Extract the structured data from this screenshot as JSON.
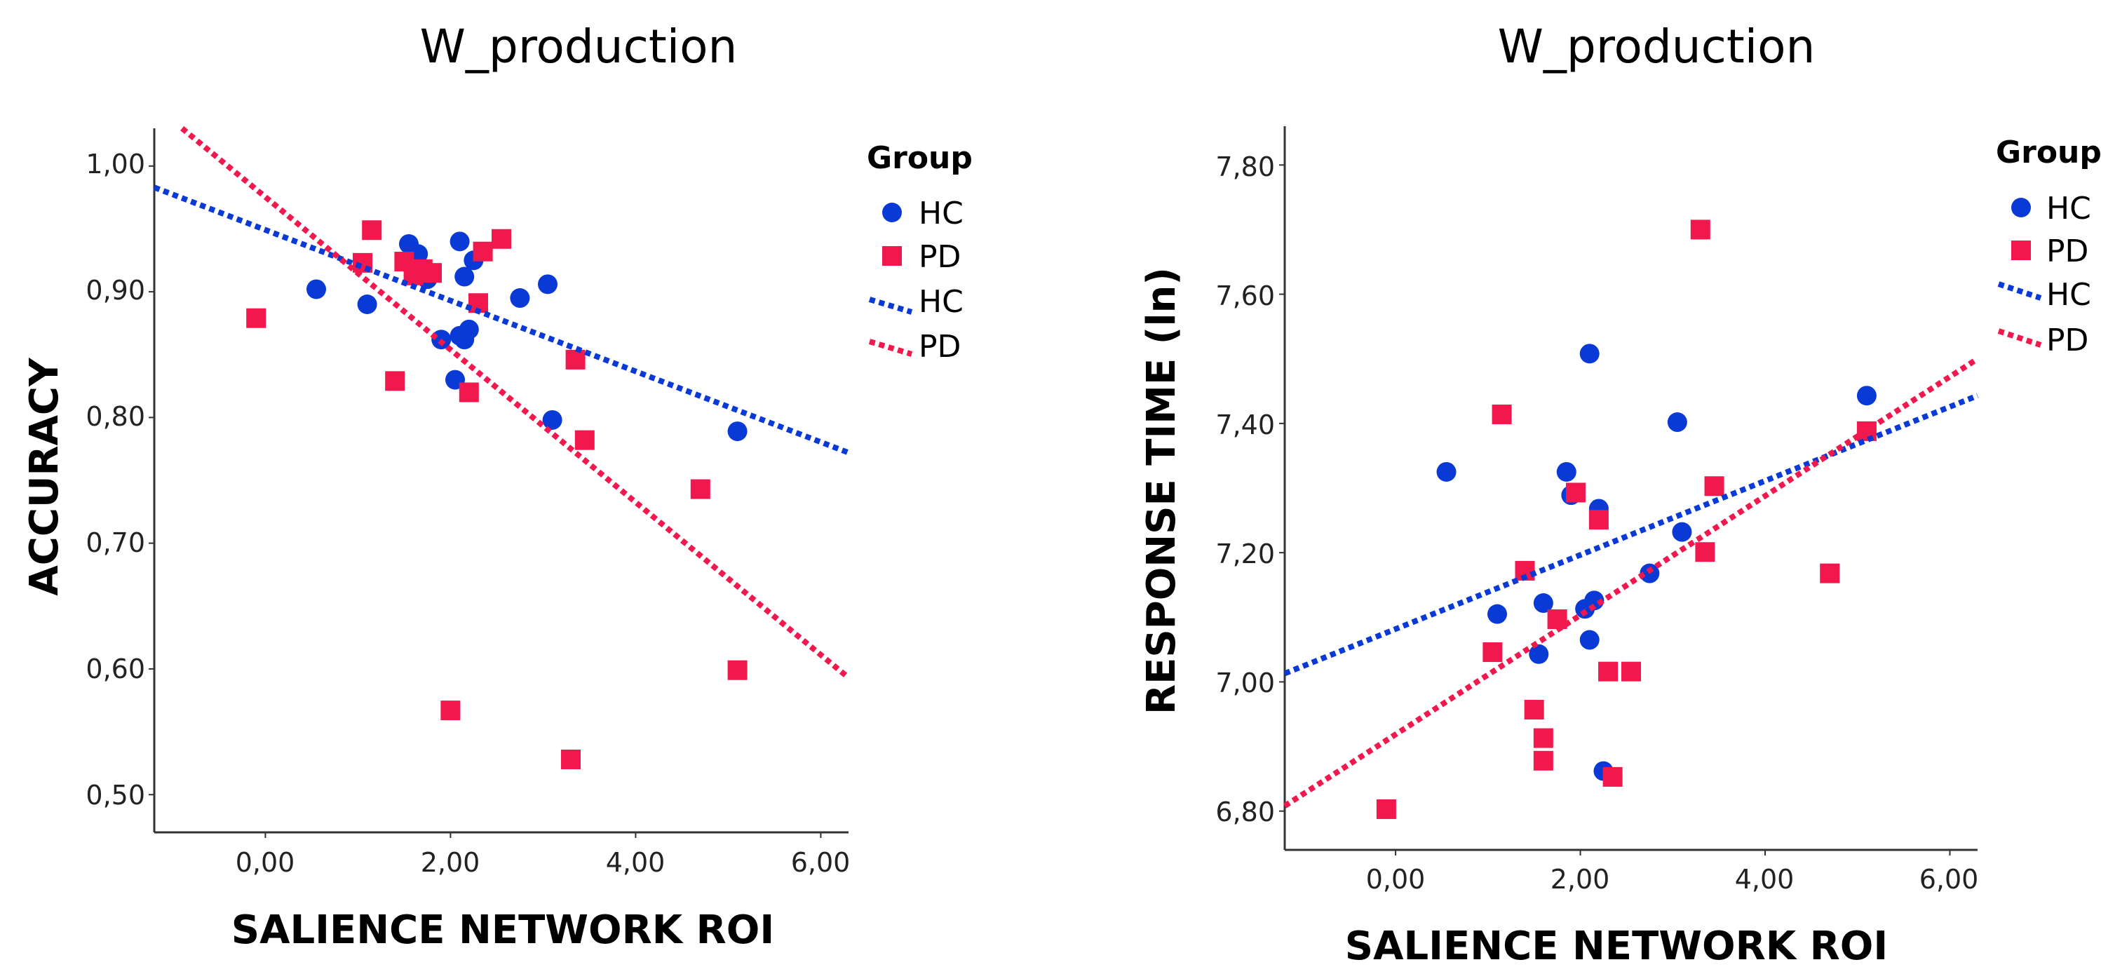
{
  "chart_data": [
    {
      "type": "scatter",
      "title": "W_production",
      "xlabel": "SALIENCE NETWORK ROI",
      "ylabel": "ACCURACY",
      "xlim": [
        -1.2,
        6.3
      ],
      "ylim": [
        0.47,
        1.03
      ],
      "xticks": [
        0,
        2,
        4,
        6
      ],
      "xtick_labels": [
        "0,00",
        "2,00",
        "4,00",
        "6,00"
      ],
      "yticks": [
        0.5,
        0.6,
        0.7,
        0.8,
        0.9,
        1.0
      ],
      "ytick_labels": [
        "0,50",
        "0,60",
        "0,70",
        "0,80",
        "0,90",
        "1,00"
      ],
      "grid": false,
      "legend": {
        "title": "Group",
        "placement": "top-right",
        "items": [
          {
            "label": "HC",
            "kind": "marker",
            "color": "#0a3ad6"
          },
          {
            "label": "PD",
            "kind": "marker",
            "color": "#f0184c"
          },
          {
            "label": "HC",
            "kind": "line",
            "color": "#0a3ad6"
          },
          {
            "label": "PD",
            "kind": "line",
            "color": "#f0184c"
          }
        ]
      },
      "series": [
        {
          "name": "HC",
          "marker": "circle",
          "color": "#0a3ad6",
          "x": [
            0.55,
            1.1,
            1.55,
            1.65,
            1.75,
            1.9,
            2.05,
            2.1,
            2.15,
            2.15,
            2.2,
            2.25,
            2.1,
            2.75,
            3.05,
            3.1,
            5.1
          ],
          "y": [
            0.902,
            0.89,
            0.938,
            0.93,
            0.91,
            0.862,
            0.83,
            0.94,
            0.912,
            0.862,
            0.87,
            0.925,
            0.865,
            0.895,
            0.906,
            0.798,
            0.789
          ]
        },
        {
          "name": "PD",
          "marker": "square",
          "color": "#f0184c",
          "x": [
            -0.1,
            1.05,
            1.15,
            1.4,
            1.5,
            1.6,
            1.7,
            1.8,
            2.0,
            2.2,
            2.3,
            2.35,
            2.55,
            3.3,
            3.35,
            3.45,
            4.7,
            5.1
          ],
          "y": [
            0.879,
            0.923,
            0.949,
            0.829,
            0.924,
            0.913,
            0.918,
            0.915,
            0.567,
            0.82,
            0.891,
            0.932,
            0.942,
            0.528,
            0.846,
            0.782,
            0.743,
            0.599
          ]
        }
      ],
      "fit_lines": [
        {
          "name": "HC",
          "color": "#0a3ad6",
          "x": [
            -1.2,
            6.3
          ],
          "y": [
            0.983,
            0.772
          ]
        },
        {
          "name": "PD",
          "color": "#f0184c",
          "x": [
            -0.9,
            6.3
          ],
          "y": [
            1.03,
            0.593
          ]
        }
      ]
    },
    {
      "type": "scatter",
      "title": "W_production",
      "xlabel": "SALIENCE NETWORK ROI",
      "ylabel": "RESPONSE TIME (ln)",
      "xlim": [
        -1.2,
        6.3
      ],
      "ylim": [
        6.74,
        7.86
      ],
      "xticks": [
        0,
        2,
        4,
        6
      ],
      "xtick_labels": [
        "0,00",
        "2,00",
        "4,00",
        "6,00"
      ],
      "yticks": [
        6.8,
        7.0,
        7.2,
        7.4,
        7.6,
        7.8
      ],
      "ytick_labels": [
        "6,80",
        "7,00",
        "7,20",
        "7,40",
        "7,60",
        "7,80"
      ],
      "grid": false,
      "legend": {
        "title": "Group",
        "placement": "top-right",
        "items": [
          {
            "label": "HC",
            "kind": "marker",
            "color": "#0a3ad6"
          },
          {
            "label": "PD",
            "kind": "marker",
            "color": "#f0184c"
          },
          {
            "label": "HC",
            "kind": "line",
            "color": "#0a3ad6"
          },
          {
            "label": "PD",
            "kind": "line",
            "color": "#f0184c"
          }
        ]
      },
      "series": [
        {
          "name": "HC",
          "marker": "circle",
          "color": "#0a3ad6",
          "x": [
            0.55,
            1.1,
            1.55,
            1.6,
            1.85,
            1.9,
            2.05,
            2.1,
            2.1,
            2.15,
            2.2,
            2.25,
            2.75,
            3.05,
            3.1,
            5.1
          ],
          "y": [
            7.325,
            7.105,
            7.043,
            7.122,
            7.325,
            7.289,
            7.113,
            7.065,
            7.508,
            7.126,
            7.268,
            6.862,
            7.168,
            7.402,
            7.232,
            7.443
          ]
        },
        {
          "name": "PD",
          "marker": "square",
          "color": "#f0184c",
          "x": [
            -0.1,
            1.05,
            1.15,
            1.4,
            1.5,
            1.6,
            1.6,
            1.75,
            1.95,
            2.2,
            2.3,
            2.35,
            2.55,
            3.3,
            3.35,
            3.45,
            4.7,
            5.1
          ],
          "y": [
            6.803,
            7.046,
            7.414,
            7.172,
            6.957,
            6.913,
            6.878,
            7.097,
            7.293,
            7.251,
            7.016,
            6.853,
            7.016,
            7.7,
            7.201,
            7.303,
            7.168,
            7.388
          ]
        },
        {
          "name": "HC fit",
          "marker": "none",
          "color": "#0a3ad6",
          "x": [],
          "y": []
        }
      ],
      "fit_lines": [
        {
          "name": "HC",
          "color": "#0a3ad6",
          "x": [
            -1.2,
            6.3
          ],
          "y": [
            7.013,
            7.443
          ]
        },
        {
          "name": "PD",
          "color": "#f0184c",
          "x": [
            -1.2,
            6.3
          ],
          "y": [
            6.808,
            7.5
          ]
        }
      ]
    }
  ]
}
